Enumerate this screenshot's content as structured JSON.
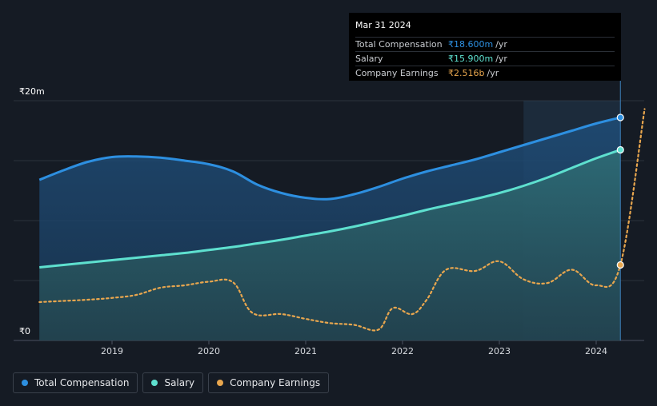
{
  "chart_data": {
    "type": "area",
    "y_unit_label_top": "₹20m",
    "y_unit_label_bottom": "₹0",
    "ylim": [
      0,
      20
    ],
    "xlim": [
      2018.2,
      2024.5
    ],
    "x_ticks": [
      {
        "value": 2019,
        "label": "2019"
      },
      {
        "value": 2020,
        "label": "2020"
      },
      {
        "value": 2021,
        "label": "2021"
      },
      {
        "value": 2022,
        "label": "2022"
      },
      {
        "value": 2023,
        "label": "2023"
      },
      {
        "value": 2024,
        "label": "2024"
      }
    ],
    "y_gridlines": [
      0,
      5,
      10,
      15,
      20
    ],
    "highlight_range": [
      2023.25,
      2024.25
    ],
    "series": [
      {
        "name": "Total Compensation",
        "color": "#2d8fe0",
        "style": "solid-area",
        "points": [
          [
            2018.25,
            13.4
          ],
          [
            2018.5,
            14.2
          ],
          [
            2018.75,
            14.9
          ],
          [
            2019.0,
            15.3
          ],
          [
            2019.25,
            15.35
          ],
          [
            2019.5,
            15.25
          ],
          [
            2019.75,
            15.0
          ],
          [
            2020.0,
            14.7
          ],
          [
            2020.25,
            14.1
          ],
          [
            2020.5,
            13.0
          ],
          [
            2020.75,
            12.3
          ],
          [
            2021.0,
            11.9
          ],
          [
            2021.25,
            11.8
          ],
          [
            2021.5,
            12.2
          ],
          [
            2021.75,
            12.8
          ],
          [
            2022.0,
            13.5
          ],
          [
            2022.25,
            14.1
          ],
          [
            2022.5,
            14.6
          ],
          [
            2022.75,
            15.1
          ],
          [
            2023.0,
            15.7
          ],
          [
            2023.25,
            16.3
          ],
          [
            2023.5,
            16.9
          ],
          [
            2023.75,
            17.5
          ],
          [
            2024.0,
            18.1
          ],
          [
            2024.25,
            18.6
          ]
        ],
        "end_value": 18.6
      },
      {
        "name": "Salary",
        "color": "#5ee0cf",
        "style": "solid-area",
        "points": [
          [
            2018.25,
            6.1
          ],
          [
            2018.5,
            6.3
          ],
          [
            2018.75,
            6.5
          ],
          [
            2019.0,
            6.7
          ],
          [
            2019.25,
            6.9
          ],
          [
            2019.5,
            7.1
          ],
          [
            2019.75,
            7.3
          ],
          [
            2020.0,
            7.55
          ],
          [
            2020.25,
            7.8
          ],
          [
            2020.5,
            8.1
          ],
          [
            2020.75,
            8.4
          ],
          [
            2021.0,
            8.75
          ],
          [
            2021.25,
            9.1
          ],
          [
            2021.5,
            9.5
          ],
          [
            2021.75,
            9.95
          ],
          [
            2022.0,
            10.4
          ],
          [
            2022.25,
            10.9
          ],
          [
            2022.5,
            11.35
          ],
          [
            2022.75,
            11.8
          ],
          [
            2023.0,
            12.3
          ],
          [
            2023.25,
            12.9
          ],
          [
            2023.5,
            13.6
          ],
          [
            2023.75,
            14.4
          ],
          [
            2024.0,
            15.2
          ],
          [
            2024.25,
            15.9
          ]
        ],
        "end_value": 15.9
      },
      {
        "name": "Company Earnings",
        "color": "#e8a64e",
        "style": "dotted",
        "points": [
          [
            2018.25,
            3.2
          ],
          [
            2018.5,
            3.3
          ],
          [
            2018.75,
            3.4
          ],
          [
            2019.0,
            3.55
          ],
          [
            2019.25,
            3.8
          ],
          [
            2019.5,
            4.4
          ],
          [
            2019.75,
            4.6
          ],
          [
            2020.0,
            4.9
          ],
          [
            2020.25,
            4.85
          ],
          [
            2020.45,
            2.3
          ],
          [
            2020.75,
            2.2
          ],
          [
            2021.0,
            1.8
          ],
          [
            2021.25,
            1.45
          ],
          [
            2021.5,
            1.3
          ],
          [
            2021.75,
            0.9
          ],
          [
            2021.9,
            2.7
          ],
          [
            2022.1,
            2.2
          ],
          [
            2022.25,
            3.4
          ],
          [
            2022.45,
            5.9
          ],
          [
            2022.75,
            5.8
          ],
          [
            2023.0,
            6.6
          ],
          [
            2023.25,
            5.1
          ],
          [
            2023.5,
            4.8
          ],
          [
            2023.75,
            5.9
          ],
          [
            2024.0,
            4.6
          ],
          [
            2024.25,
            6.3
          ],
          [
            2024.5,
            19.3
          ]
        ],
        "end_marker_x": 2024.25,
        "end_value": 6.3
      }
    ]
  },
  "tooltip": {
    "date": "Mar 31 2024",
    "rows": [
      {
        "name": "Total Compensation",
        "value": "₹18.600m",
        "unit": "/yr",
        "color": "#2d8fe0"
      },
      {
        "name": "Salary",
        "value": "₹15.900m",
        "unit": "/yr",
        "color": "#5ee0cf"
      },
      {
        "name": "Company Earnings",
        "value": "₹2.516b",
        "unit": "/yr",
        "color": "#e8a64e"
      }
    ]
  },
  "legend": {
    "items": [
      {
        "label": "Total Compensation",
        "color": "#2d8fe0"
      },
      {
        "label": "Salary",
        "color": "#5ee0cf"
      },
      {
        "label": "Company Earnings",
        "color": "#e8a64e"
      }
    ]
  }
}
